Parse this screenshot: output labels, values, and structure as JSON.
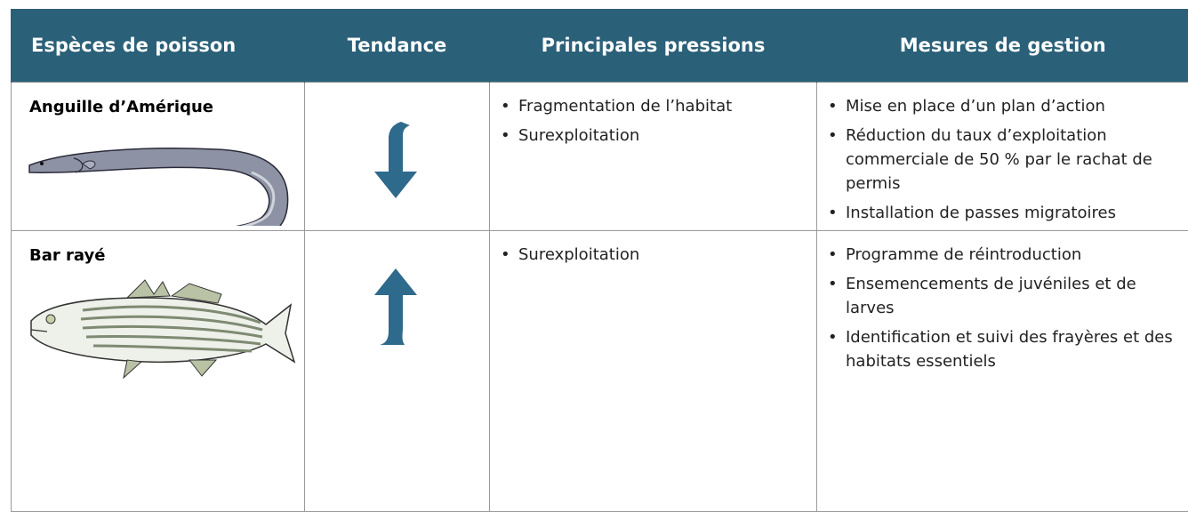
{
  "table": {
    "headers": [
      "Espèces de poisson",
      "Tendance",
      "Principales pressions",
      "Mesures de gestion"
    ],
    "rows": [
      {
        "species": "Anguille d’Amérique",
        "pressures": [
          "Fragmentation de l’habitat",
          "Surexploitation"
        ],
        "measures": [
          "Mise en place d’un plan d’action",
          "Réduction du taux d’exploitation commerciale de 50 % par le rachat de permis",
          "Installation de passes migratoires"
        ]
      },
      {
        "species": "Bar rayé",
        "pressures": [
          "Surexploitation"
        ],
        "measures": [
          "Programme de réintroduction",
          "Ensemencements de juvéniles et de larves",
          "Identification et suivi des frayères et des habitats essentiels"
        ]
      }
    ]
  }
}
